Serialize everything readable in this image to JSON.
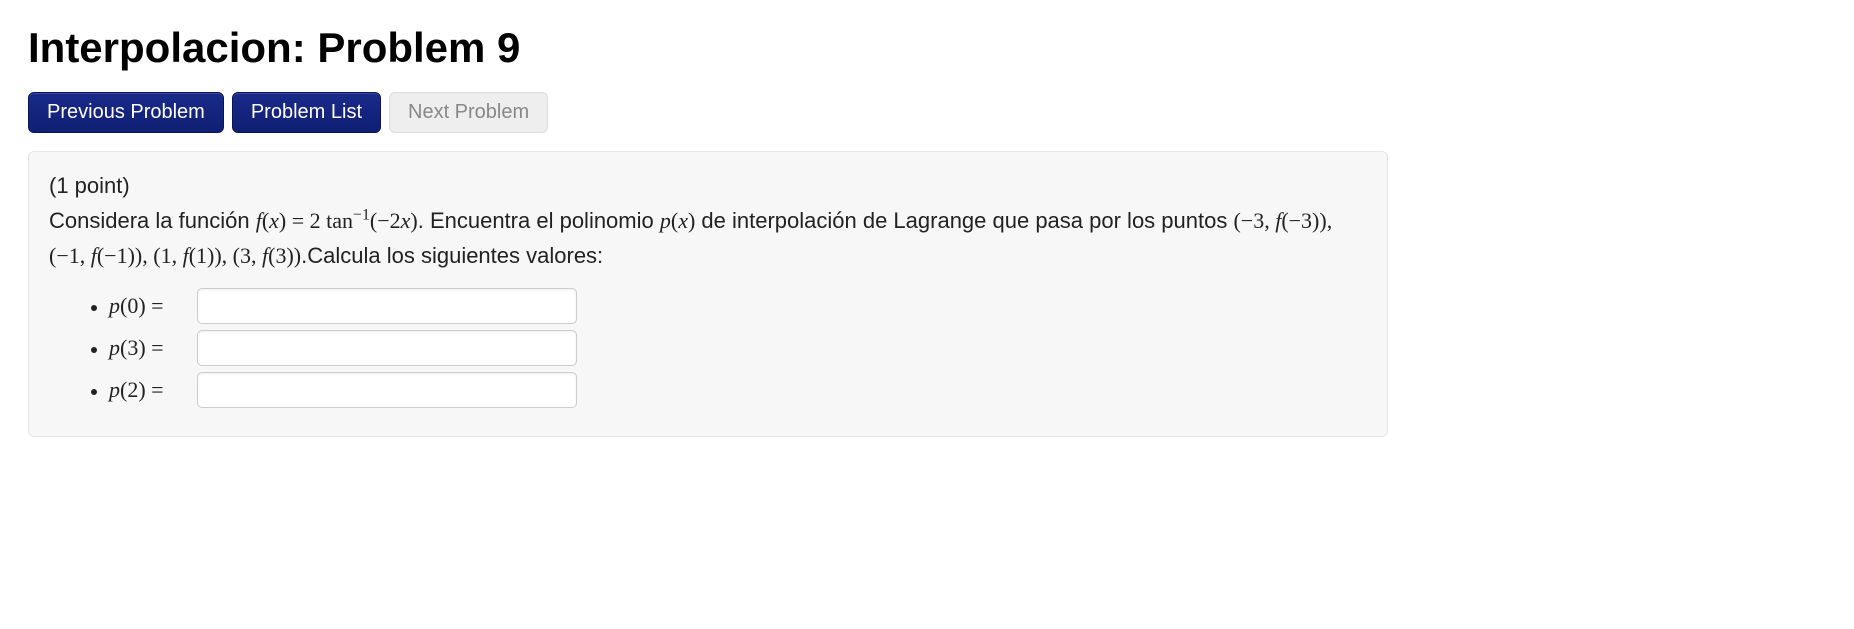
{
  "title": "Interpolacion: Problem 9",
  "nav": {
    "prev": "Previous Problem",
    "list": "Problem List",
    "next": "Next Problem"
  },
  "problem": {
    "points_label": "(1 point)",
    "intro_text": "Considera la función ",
    "func_lhs_var": "f",
    "func_lhs_arg": "x",
    "func_eq": " = ",
    "func_coeff": "2",
    "func_name": " tan",
    "func_exp": "−1",
    "func_arg": "(−2",
    "func_arg_var": "x",
    "func_arg_close": ")",
    "mid_text_1": ". Encuentra el polinomio ",
    "poly_var": "p",
    "poly_arg": "x",
    "mid_text_2": " de interpolación de Lagrange que pasa por los puntos ",
    "points_list": "(−3, f(−3)), (−1, f(−1)), (1, f(1)), (3, f(3))",
    "tail_text": ".Calcula los siguientes valores:"
  },
  "answers": [
    {
      "var": "p",
      "arg": "0",
      "value": ""
    },
    {
      "var": "p",
      "arg": "3",
      "value": ""
    },
    {
      "var": "p",
      "arg": "2",
      "value": ""
    }
  ],
  "colors": {
    "primary_button_bg": "#162a7a",
    "primary_button_border": "#0b1458",
    "disabled_button_bg": "#eeeeee",
    "disabled_button_text": "#888888",
    "panel_bg": "#f7f7f7",
    "panel_border": "#e5e5e5",
    "input_border": "#cccccc",
    "text": "#222222"
  }
}
